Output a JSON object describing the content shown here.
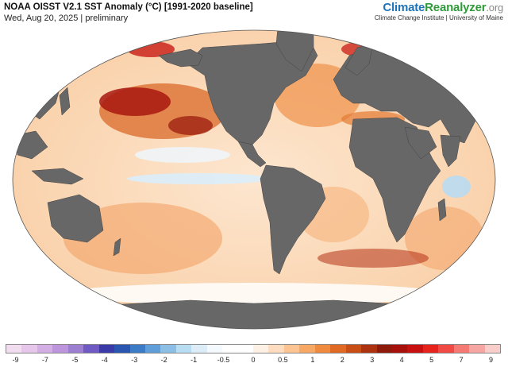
{
  "header": {
    "title": "NOAA OISST V2.1 SST Anomaly (°C) [1991-2020 baseline]",
    "subtitle": "Wed, Aug 20, 2025 | preliminary"
  },
  "brand": {
    "name_part1": "Climate",
    "name_part2": "Reanalyzer",
    "name_part3": ".org",
    "credit": "Climate Change Institute | University of Maine"
  },
  "legend": {
    "tick_labels": [
      "-9",
      "-7",
      "-5",
      "-4",
      "-3",
      "-2",
      "-1",
      "-0.5",
      "0",
      "0.5",
      "1",
      "2",
      "3",
      "4",
      "5",
      "7",
      "9"
    ],
    "swatch_colors": [
      "#f2dcef",
      "#e6c6ea",
      "#d3aee4",
      "#bc95dc",
      "#9d7fd2",
      "#6e5ac2",
      "#3a3aa8",
      "#2a55b0",
      "#3c7cc6",
      "#5f9ed8",
      "#8cbfe6",
      "#b8dcf2",
      "#dcedf8",
      "#f4f9fd",
      "#ffffff",
      "#ffffff",
      "#fdf1e6",
      "#fddcbf",
      "#fcc493",
      "#f8a865",
      "#f08a3e",
      "#e06a24",
      "#c94e16",
      "#ad3210",
      "#8e1a0c",
      "#a8100c",
      "#c81010",
      "#e6231d",
      "#f14a44",
      "#f57a74",
      "#f7a7a3",
      "#f9cdca"
    ]
  },
  "map": {
    "ocean_color": "#fbe0c4",
    "land_color": "#676767",
    "ice_color": "#ffffff"
  }
}
